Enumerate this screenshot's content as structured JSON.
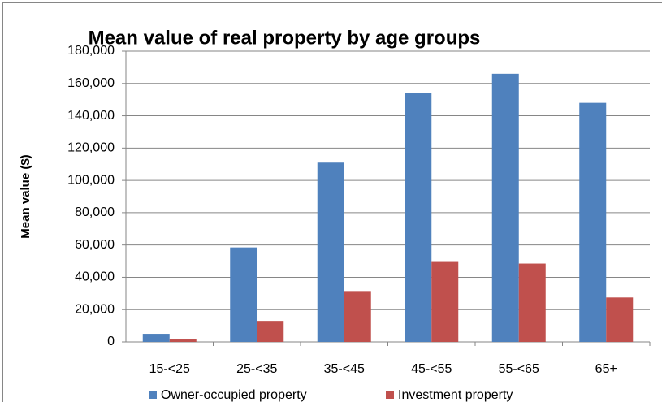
{
  "chart_data": {
    "type": "bar",
    "title": "Mean value of real property by age groups",
    "y_label": "Mean value ($)",
    "categories": [
      "15-<25",
      "25-<35",
      "35-<45",
      "45-<55",
      "55-<65",
      "65+"
    ],
    "series": [
      {
        "name": "Owner-occupied property",
        "color": "#4f81bd",
        "values": [
          5000,
          58500,
          111000,
          154000,
          166000,
          148000
        ]
      },
      {
        "name": "Investment property",
        "color": "#c0504d",
        "values": [
          1500,
          13000,
          31500,
          50000,
          48500,
          27500
        ]
      }
    ],
    "ylim": [
      0,
      180000
    ],
    "yticks": [
      0,
      {
        "value": 20000,
        "label": "20,000"
      },
      {
        "value": 40000,
        "label": "40,000"
      },
      {
        "value": 60000,
        "label": "60,000"
      },
      {
        "value": 80000,
        "label": "80,000"
      },
      {
        "value": 100000,
        "label": "100,000"
      },
      {
        "value": 120000,
        "label": "120,000"
      },
      {
        "value": 140000,
        "label": "140,000"
      },
      {
        "value": 160000,
        "label": "160,000"
      },
      {
        "value": 180000,
        "label": "180,000"
      }
    ],
    "grid": true,
    "legend": "bottom"
  }
}
